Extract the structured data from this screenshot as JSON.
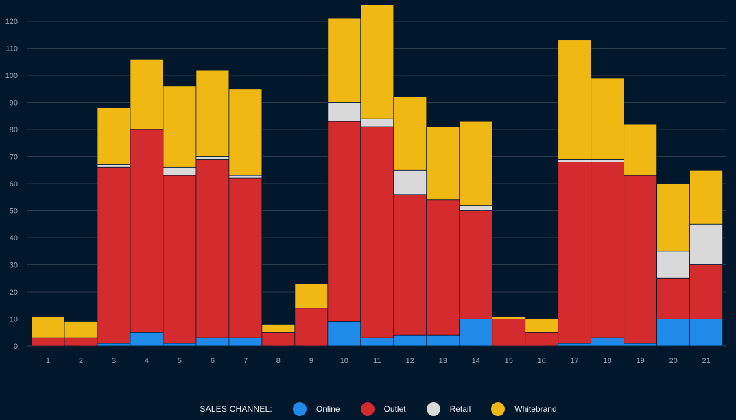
{
  "chart_data": {
    "type": "bar",
    "stacked": true,
    "categories": [
      "1",
      "2",
      "3",
      "4",
      "5",
      "6",
      "7",
      "8",
      "9",
      "10",
      "11",
      "12",
      "13",
      "14",
      "15",
      "16",
      "17",
      "18",
      "19",
      "20",
      "21"
    ],
    "ylim": [
      0,
      126
    ],
    "yticks": [
      0,
      10,
      20,
      30,
      40,
      50,
      60,
      70,
      80,
      90,
      100,
      110,
      120
    ],
    "grid": true,
    "legend_title": "SALES CHANNEL:",
    "legend_position": "bottom",
    "series": [
      {
        "name": "Online",
        "color": "#1f8ae8",
        "values": [
          0,
          0,
          1,
          5,
          1,
          3,
          3,
          0,
          0,
          9,
          3,
          4,
          4,
          10,
          0,
          0,
          1,
          3,
          1,
          10,
          10
        ]
      },
      {
        "name": "Outlet",
        "color": "#d42b2f",
        "values": [
          3,
          3,
          65,
          75,
          62,
          66,
          59,
          5,
          14,
          74,
          78,
          52,
          50,
          40,
          10,
          5,
          67,
          65,
          62,
          15,
          20
        ]
      },
      {
        "name": "Retail",
        "color": "#d9d9d9",
        "values": [
          0,
          0,
          1,
          0,
          3,
          1,
          1,
          0,
          0,
          7,
          3,
          9,
          0,
          2,
          0,
          0,
          1,
          1,
          0,
          10,
          15
        ]
      },
      {
        "name": "Whitebrand",
        "color": "#f0b813",
        "values": [
          8,
          6,
          21,
          26,
          30,
          32,
          32,
          3,
          9,
          31,
          42,
          27,
          27,
          31,
          1,
          5,
          44,
          30,
          19,
          25,
          20
        ]
      }
    ]
  }
}
